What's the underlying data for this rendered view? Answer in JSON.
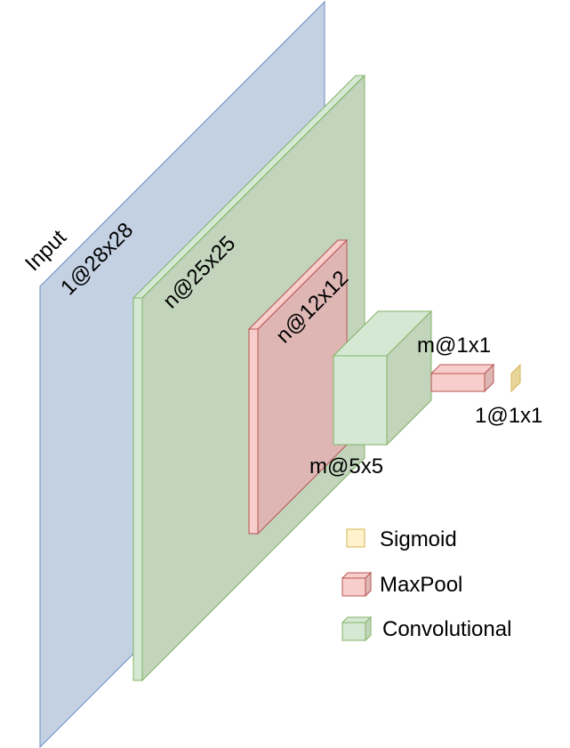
{
  "layers": {
    "input": {
      "title": "Input",
      "dims": "1@28x28",
      "color": "#c3d1e3"
    },
    "conv1": {
      "dims": "n@25x25",
      "color": "#c2d4bc"
    },
    "pool1": {
      "dims": "n@12x12",
      "color": "#deb7b5"
    },
    "conv2": {
      "dims": "m@5x5",
      "color": "#d5e8d4"
    },
    "pool2": {
      "dims": "m@1x1",
      "color": "#f8cecc"
    },
    "output": {
      "dims": "1@1x1",
      "color": "#fff2cc"
    }
  },
  "legend": {
    "sigmoid": {
      "label": "Sigmoid",
      "color": "#fff2cc"
    },
    "maxpool": {
      "label": "MaxPool",
      "color": "#f8cecc"
    },
    "convolutional": {
      "label": "Convolutional",
      "color": "#d5e8d4"
    }
  }
}
